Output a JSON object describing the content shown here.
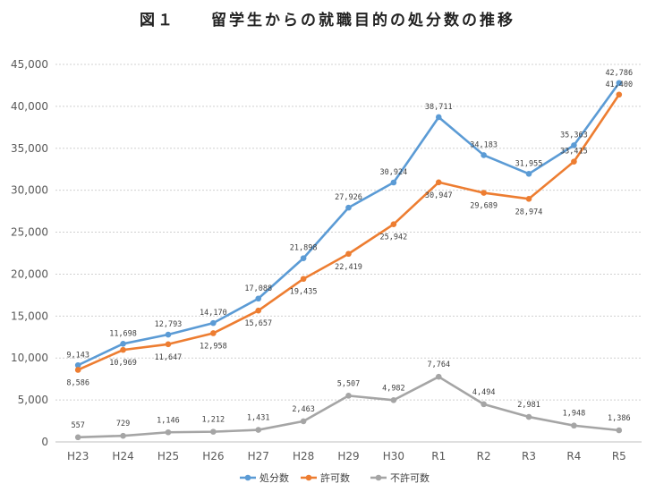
{
  "page": {
    "title": "図１　　留学生からの就職目的の処分数の推移"
  },
  "chart_data": {
    "type": "line",
    "title": "図１　　留学生からの就職目的の処分数の推移",
    "xlabel": "",
    "ylabel": "",
    "categories": [
      "H23",
      "H24",
      "H25",
      "H26",
      "H27",
      "H28",
      "H29",
      "H30",
      "R1",
      "R2",
      "R3",
      "R4",
      "R5"
    ],
    "ylim": [
      0,
      45000
    ],
    "yticks": [
      0,
      5000,
      10000,
      15000,
      20000,
      25000,
      30000,
      35000,
      40000,
      45000
    ],
    "ytick_labels": [
      "0",
      "5,000",
      "10,000",
      "15,000",
      "20,000",
      "25,000",
      "30,000",
      "35,000",
      "40,000",
      "45,000"
    ],
    "grid": "horizontal dashed",
    "legend": "bottom",
    "series": [
      {
        "name": "処分数",
        "color": "#5b9bd5",
        "values": [
          9143,
          11698,
          12793,
          14170,
          17088,
          21898,
          27926,
          30924,
          38711,
          34183,
          31955,
          35363,
          42786
        ],
        "labels": [
          "9,143",
          "11,698",
          "12,793",
          "14,170",
          "17,088",
          "21,898",
          "27,926",
          "30,924",
          "38,711",
          "34,183",
          "31,955",
          "35,363",
          "42,786"
        ]
      },
      {
        "name": "許可数",
        "color": "#ed7d31",
        "values": [
          8586,
          10969,
          11647,
          12958,
          15657,
          19435,
          22419,
          25942,
          30947,
          29689,
          28974,
          33415,
          41400
        ],
        "labels": [
          "8,586",
          "10,969",
          "11,647",
          "12,958",
          "15,657",
          "19,435",
          "22,419",
          "25,942",
          "30,947",
          "29,689",
          "28,974",
          "33,415",
          "41,400"
        ]
      },
      {
        "name": "不許可数",
        "color": "#a5a5a5",
        "values": [
          557,
          729,
          1146,
          1212,
          1431,
          2463,
          5507,
          4982,
          7764,
          4494,
          2981,
          1948,
          1386
        ],
        "labels": [
          "557",
          "729",
          "1,146",
          "1,212",
          "1,431",
          "2,463",
          "5,507",
          "4,982",
          "7,764",
          "4,494",
          "2,981",
          "1,948",
          "1,386"
        ]
      }
    ]
  }
}
